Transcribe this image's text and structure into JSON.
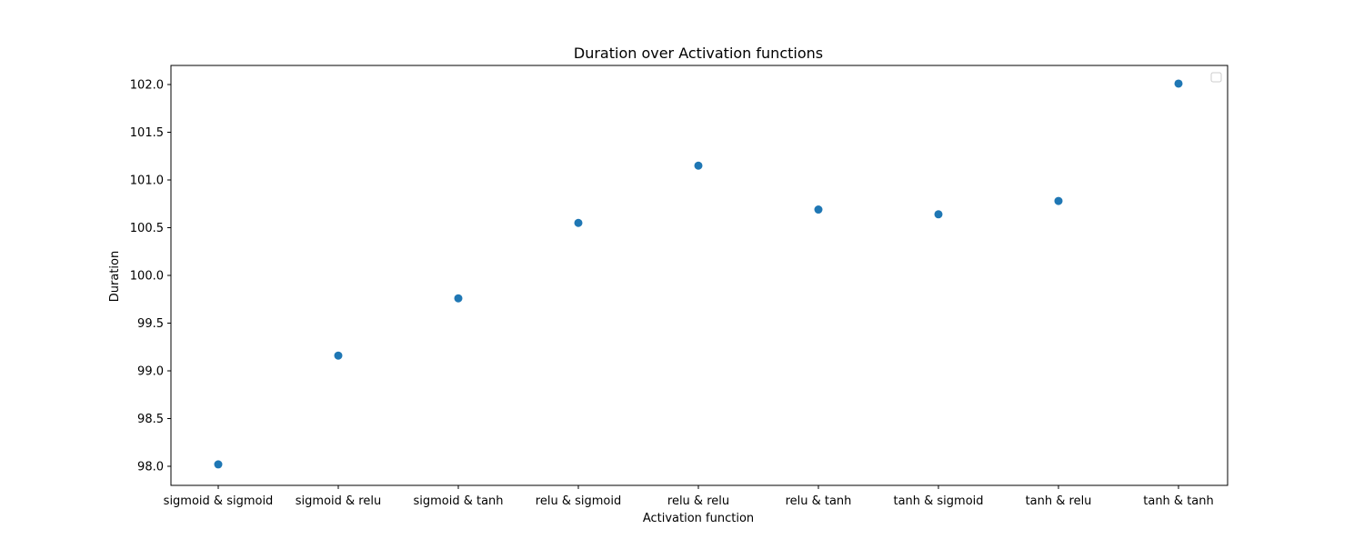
{
  "chart_data": {
    "type": "scatter",
    "title": "Duration over Activation functions",
    "xlabel": "Activation function",
    "ylabel": "Duration",
    "categories": [
      "sigmoid & sigmoid",
      "sigmoid & relu",
      "sigmoid & tanh",
      "relu & sigmoid",
      "relu & relu",
      "relu & tanh",
      "tanh & sigmoid",
      "tanh & relu",
      "tanh & tanh"
    ],
    "values": [
      98.02,
      99.16,
      99.76,
      100.55,
      101.15,
      100.69,
      100.64,
      100.78,
      102.01
    ],
    "ylim": [
      97.8,
      102.2
    ],
    "yticks": [
      "98.0",
      "98.5",
      "99.0",
      "99.5",
      "100.0",
      "100.5",
      "101.0",
      "101.5",
      "102.0"
    ],
    "grid": false,
    "legend": {
      "location": "top-right",
      "entries": []
    },
    "marker_color": "#1f77b4"
  }
}
